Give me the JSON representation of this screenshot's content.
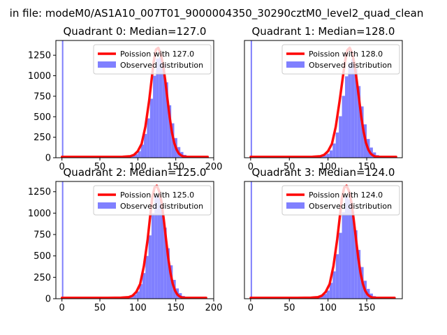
{
  "figure": {
    "suptitle": "in file: modeM0/AS1A10_007T01_9000004350_30290cztM0_level2_quad_clean"
  },
  "colors": {
    "poisson": "#ff0000",
    "hist": "#8080ff",
    "hist_spike": "#7f7ffc",
    "axes": "#000000",
    "background": "#ffffff"
  },
  "chart_data": [
    {
      "type": "bar",
      "title": "Quadrant 0: Median=127.0",
      "median": 127.0,
      "xlim": [
        -8,
        200
      ],
      "ylim": [
        0,
        1430
      ],
      "xticks": [
        0,
        50,
        100,
        150,
        200
      ],
      "yticks": [
        0,
        250,
        500,
        750,
        1000,
        1250
      ],
      "xlabel": "",
      "ylabel": "",
      "legend": {
        "location": "upper-right",
        "entries": [
          "Poission with 127.0",
          "Observed distribution"
        ]
      },
      "spike": {
        "x": 0,
        "height": 1430
      },
      "hist": {
        "bin_width": 4,
        "bins": [
          [
            68,
            4
          ],
          [
            72,
            6
          ],
          [
            76,
            10
          ],
          [
            80,
            12
          ],
          [
            84,
            15
          ],
          [
            88,
            20
          ],
          [
            92,
            30
          ],
          [
            96,
            45
          ],
          [
            100,
            80
          ],
          [
            104,
            160
          ],
          [
            108,
            290
          ],
          [
            112,
            480
          ],
          [
            116,
            720
          ],
          [
            120,
            1000
          ],
          [
            124,
            1210
          ],
          [
            128,
            1230
          ],
          [
            132,
            1140
          ],
          [
            136,
            920
          ],
          [
            140,
            640
          ],
          [
            144,
            420
          ],
          [
            148,
            240
          ],
          [
            152,
            130
          ],
          [
            156,
            70
          ],
          [
            160,
            35
          ],
          [
            164,
            18
          ],
          [
            168,
            10
          ],
          [
            172,
            6
          ],
          [
            176,
            4
          ]
        ]
      },
      "poisson_curve": {
        "x": [
          0,
          60,
          80,
          90,
          95,
          100,
          105,
          110,
          115,
          118,
          121,
          124,
          127,
          130,
          133,
          136,
          139,
          142,
          145,
          148,
          151,
          154,
          157,
          160,
          165,
          170,
          180,
          192
        ],
        "y": [
          10,
          10,
          12,
          18,
          35,
          80,
          170,
          380,
          700,
          940,
          1180,
          1320,
          1340,
          1270,
          1150,
          950,
          720,
          490,
          310,
          180,
          100,
          52,
          28,
          15,
          10,
          10,
          10,
          10
        ]
      }
    },
    {
      "type": "bar",
      "title": "Quadrant 1: Median=128.0",
      "median": 128.0,
      "xlim": [
        -8,
        196
      ],
      "ylim": [
        0,
        1440
      ],
      "xticks": [
        0,
        50,
        100,
        150
      ],
      "yticks": [],
      "xlabel": "",
      "ylabel": "",
      "legend": {
        "location": "upper-right",
        "entries": [
          "Poission with 128.0",
          "Observed distribution"
        ]
      },
      "spike": {
        "x": 0,
        "height": 1440
      },
      "hist": {
        "bin_width": 4,
        "bins": [
          [
            70,
            4
          ],
          [
            74,
            6
          ],
          [
            78,
            10
          ],
          [
            82,
            12
          ],
          [
            86,
            16
          ],
          [
            90,
            22
          ],
          [
            94,
            32
          ],
          [
            98,
            50
          ],
          [
            102,
            90
          ],
          [
            106,
            175
          ],
          [
            110,
            310
          ],
          [
            114,
            510
          ],
          [
            118,
            760
          ],
          [
            122,
            1000
          ],
          [
            126,
            1170
          ],
          [
            130,
            1210
          ],
          [
            134,
            1100
          ],
          [
            138,
            880
          ],
          [
            142,
            630
          ],
          [
            146,
            410
          ],
          [
            150,
            230
          ],
          [
            154,
            125
          ],
          [
            158,
            65
          ],
          [
            162,
            32
          ],
          [
            166,
            16
          ],
          [
            170,
            9
          ],
          [
            174,
            5
          ]
        ]
      },
      "poisson_curve": {
        "x": [
          0,
          60,
          80,
          90,
          95,
          100,
          105,
          110,
          115,
          119,
          122,
          125,
          128,
          131,
          134,
          137,
          140,
          143,
          146,
          149,
          152,
          155,
          158,
          161,
          166,
          172,
          180,
          188
        ],
        "y": [
          10,
          10,
          12,
          18,
          35,
          80,
          170,
          380,
          700,
          980,
          1180,
          1320,
          1350,
          1290,
          1160,
          960,
          730,
          500,
          320,
          185,
          100,
          52,
          28,
          15,
          10,
          10,
          10,
          10
        ]
      }
    },
    {
      "type": "bar",
      "title": "Quadrant 2: Median=125.0",
      "median": 125.0,
      "xlim": [
        -8,
        200
      ],
      "ylim": [
        0,
        1370
      ],
      "xticks": [
        0,
        50,
        100,
        150,
        200
      ],
      "yticks": [
        0,
        250,
        500,
        750,
        1000,
        1250
      ],
      "xlabel": "",
      "ylabel": "",
      "legend": {
        "location": "upper-right",
        "entries": [
          "Poission with 125.0",
          "Observed distribution"
        ]
      },
      "spike": {
        "x": 0,
        "height": 1370
      },
      "hist": {
        "bin_width": 4,
        "bins": [
          [
            66,
            4
          ],
          [
            70,
            6
          ],
          [
            74,
            10
          ],
          [
            78,
            12
          ],
          [
            82,
            15
          ],
          [
            86,
            20
          ],
          [
            90,
            30
          ],
          [
            94,
            48
          ],
          [
            98,
            85
          ],
          [
            102,
            170
          ],
          [
            106,
            300
          ],
          [
            110,
            500
          ],
          [
            114,
            740
          ],
          [
            118,
            1000
          ],
          [
            122,
            1200
          ],
          [
            126,
            1180
          ],
          [
            130,
            1050
          ],
          [
            134,
            830
          ],
          [
            138,
            590
          ],
          [
            142,
            390
          ],
          [
            146,
            220
          ],
          [
            150,
            120
          ],
          [
            154,
            65
          ],
          [
            158,
            32
          ],
          [
            162,
            16
          ],
          [
            166,
            9
          ],
          [
            170,
            5
          ]
        ]
      },
      "poisson_curve": {
        "x": [
          0,
          60,
          78,
          88,
          93,
          98,
          103,
          108,
          113,
          116,
          119,
          122,
          125,
          128,
          131,
          134,
          137,
          140,
          143,
          146,
          149,
          152,
          155,
          158,
          163,
          170,
          180,
          190
        ],
        "y": [
          10,
          10,
          12,
          18,
          35,
          80,
          170,
          380,
          700,
          940,
          1180,
          1300,
          1320,
          1260,
          1140,
          940,
          710,
          480,
          300,
          175,
          95,
          50,
          27,
          15,
          10,
          10,
          10,
          10
        ]
      }
    },
    {
      "type": "bar",
      "title": "Quadrant 3: Median=124.0",
      "median": 124.0,
      "xlim": [
        -8,
        196
      ],
      "ylim": [
        0,
        1370
      ],
      "xticks": [
        0,
        50,
        100,
        150
      ],
      "yticks": [],
      "xlabel": "",
      "ylabel": "",
      "legend": {
        "location": "upper-right",
        "entries": [
          "Poission with 124.0",
          "Observed distribution"
        ]
      },
      "spike": {
        "x": 0,
        "height": 1370
      },
      "hist": {
        "bin_width": 4,
        "bins": [
          [
            66,
            4
          ],
          [
            70,
            6
          ],
          [
            74,
            10
          ],
          [
            78,
            14
          ],
          [
            82,
            18
          ],
          [
            86,
            24
          ],
          [
            90,
            34
          ],
          [
            94,
            55
          ],
          [
            98,
            95
          ],
          [
            102,
            185
          ],
          [
            106,
            320
          ],
          [
            110,
            520
          ],
          [
            114,
            770
          ],
          [
            118,
            1010
          ],
          [
            122,
            1190
          ],
          [
            126,
            1160
          ],
          [
            130,
            1020
          ],
          [
            134,
            800
          ],
          [
            138,
            570
          ],
          [
            142,
            370
          ],
          [
            146,
            210
          ],
          [
            150,
            115
          ],
          [
            154,
            60
          ],
          [
            158,
            30
          ],
          [
            162,
            15
          ],
          [
            166,
            8
          ],
          [
            170,
            5
          ]
        ]
      },
      "poisson_curve": {
        "x": [
          0,
          60,
          78,
          87,
          92,
          97,
          102,
          107,
          112,
          115,
          118,
          121,
          124,
          127,
          130,
          133,
          136,
          139,
          142,
          145,
          148,
          151,
          154,
          157,
          162,
          170,
          180,
          186
        ],
        "y": [
          10,
          10,
          12,
          18,
          35,
          80,
          170,
          380,
          700,
          940,
          1180,
          1300,
          1320,
          1260,
          1140,
          940,
          710,
          480,
          300,
          175,
          95,
          50,
          27,
          15,
          10,
          10,
          10,
          10
        ]
      }
    }
  ]
}
